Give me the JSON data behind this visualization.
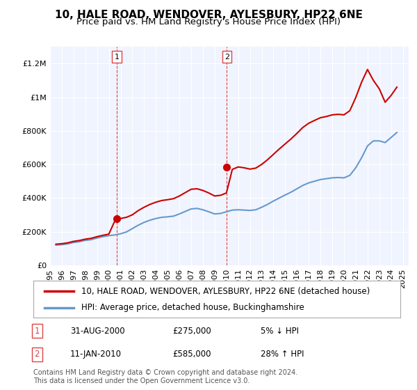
{
  "title": "10, HALE ROAD, WENDOVER, AYLESBURY, HP22 6NE",
  "subtitle": "Price paid vs. HM Land Registry's House Price Index (HPI)",
  "xlabel": "",
  "ylabel": "",
  "ylim": [
    0,
    1300000
  ],
  "xlim_start": 1995.0,
  "xlim_end": 2025.5,
  "yticks": [
    0,
    200000,
    400000,
    600000,
    800000,
    1000000,
    1200000
  ],
  "ytick_labels": [
    "£0",
    "£200K",
    "£400K",
    "£600K",
    "£800K",
    "£1M",
    "£1.2M"
  ],
  "xtick_years": [
    1995,
    1996,
    1997,
    1998,
    1999,
    2000,
    2001,
    2002,
    2003,
    2004,
    2005,
    2006,
    2007,
    2008,
    2009,
    2010,
    2011,
    2012,
    2013,
    2014,
    2015,
    2016,
    2017,
    2018,
    2019,
    2020,
    2021,
    2022,
    2023,
    2024,
    2025
  ],
  "hpi_years": [
    1995.5,
    1996,
    1996.5,
    1997,
    1997.5,
    1998,
    1998.5,
    1999,
    1999.5,
    2000,
    2000.5,
    2001,
    2001.5,
    2002,
    2002.5,
    2003,
    2003.5,
    2004,
    2004.5,
    2005,
    2005.5,
    2006,
    2006.5,
    2007,
    2007.5,
    2008,
    2008.5,
    2009,
    2009.5,
    2010,
    2010.5,
    2011,
    2011.5,
    2012,
    2012.5,
    2013,
    2013.5,
    2014,
    2014.5,
    2015,
    2015.5,
    2016,
    2016.5,
    2017,
    2017.5,
    2018,
    2018.5,
    2019,
    2019.5,
    2020,
    2020.5,
    2021,
    2021.5,
    2022,
    2022.5,
    2023,
    2023.5,
    2024,
    2024.5
  ],
  "hpi_values": [
    120000,
    122000,
    127000,
    135000,
    140000,
    148000,
    152000,
    162000,
    170000,
    176000,
    180000,
    187000,
    198000,
    218000,
    238000,
    255000,
    268000,
    278000,
    285000,
    288000,
    292000,
    305000,
    320000,
    335000,
    338000,
    330000,
    318000,
    305000,
    308000,
    318000,
    328000,
    330000,
    328000,
    326000,
    330000,
    345000,
    362000,
    382000,
    400000,
    418000,
    435000,
    455000,
    475000,
    490000,
    500000,
    510000,
    515000,
    520000,
    522000,
    520000,
    535000,
    580000,
    640000,
    710000,
    740000,
    740000,
    730000,
    760000,
    790000
  ],
  "red_years": [
    1995.5,
    1996,
    1996.5,
    1997,
    1997.5,
    1998,
    1998.5,
    1999,
    1999.5,
    2000,
    2000.5,
    2001,
    2001.5,
    2002,
    2002.5,
    2003,
    2003.5,
    2004,
    2004.5,
    2005,
    2005.5,
    2006,
    2006.5,
    2007,
    2007.5,
    2008,
    2008.5,
    2009,
    2009.5,
    2010,
    2010.5,
    2011,
    2011.5,
    2012,
    2012.5,
    2013,
    2013.5,
    2014,
    2014.5,
    2015,
    2015.5,
    2016,
    2016.5,
    2017,
    2017.5,
    2018,
    2018.5,
    2019,
    2019.5,
    2020,
    2020.5,
    2021,
    2021.5,
    2022,
    2022.5,
    2023,
    2023.5,
    2024,
    2024.5
  ],
  "red_values": [
    125000,
    128000,
    133000,
    142000,
    147000,
    155000,
    160000,
    170000,
    178000,
    185000,
    262000,
    278000,
    285000,
    300000,
    325000,
    345000,
    362000,
    375000,
    385000,
    390000,
    396000,
    412000,
    432000,
    452000,
    455000,
    445000,
    430000,
    412000,
    416000,
    430000,
    570000,
    585000,
    580000,
    572000,
    578000,
    600000,
    628000,
    660000,
    692000,
    722000,
    752000,
    785000,
    820000,
    845000,
    862000,
    878000,
    885000,
    895000,
    898000,
    895000,
    920000,
    998000,
    1090000,
    1165000,
    1100000,
    1050000,
    970000,
    1010000,
    1060000
  ],
  "sale1_x": 2000.667,
  "sale1_y": 275000,
  "sale1_label": "1",
  "sale2_x": 2010.04,
  "sale2_y": 585000,
  "sale2_label": "2",
  "vline1_x": 2000.667,
  "vline2_x": 2010.04,
  "line_color_red": "#cc0000",
  "line_color_blue": "#6699cc",
  "vline_color": "#dd4444",
  "marker_color": "#cc0000",
  "bg_plot": "#f0f4ff",
  "bg_figure": "#ffffff",
  "grid_color": "#ffffff",
  "legend_label_red": "10, HALE ROAD, WENDOVER, AYLESBURY, HP22 6NE (detached house)",
  "legend_label_blue": "HPI: Average price, detached house, Buckinghamshire",
  "transaction1": [
    "1",
    "31-AUG-2000",
    "£275,000",
    "5% ↓ HPI"
  ],
  "transaction2": [
    "2",
    "11-JAN-2010",
    "£585,000",
    "28% ↑ HPI"
  ],
  "footnote": "Contains HM Land Registry data © Crown copyright and database right 2024.\nThis data is licensed under the Open Government Licence v3.0.",
  "title_fontsize": 11,
  "subtitle_fontsize": 9.5,
  "tick_fontsize": 8,
  "legend_fontsize": 8.5,
  "table_fontsize": 8.5,
  "footnote_fontsize": 7
}
